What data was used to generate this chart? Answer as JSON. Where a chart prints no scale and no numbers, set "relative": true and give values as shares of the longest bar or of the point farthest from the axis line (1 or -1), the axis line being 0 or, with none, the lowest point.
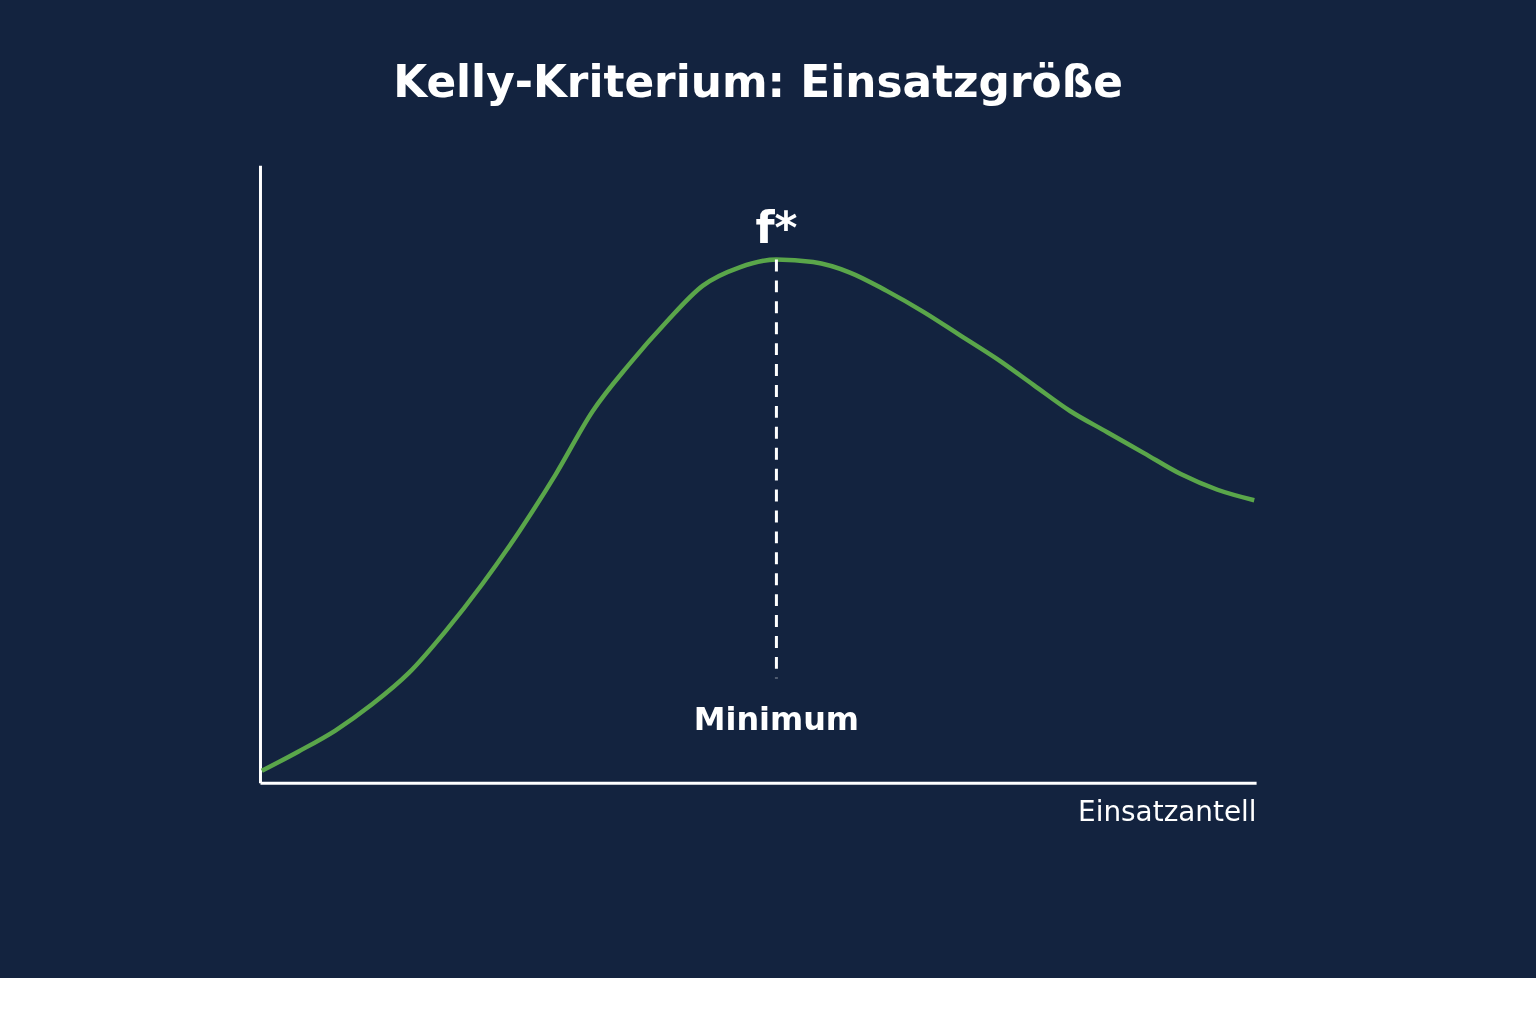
{
  "chart_data": {
    "type": "line",
    "title": "Kelly-Kriterium: Einsatzgröße",
    "xlabel": "Einsatzantell",
    "relative": true,
    "categories": [
      null,
      null,
      null,
      null,
      null,
      null,
      null,
      null,
      null,
      null,
      null,
      null,
      null,
      null,
      null,
      null,
      null,
      null,
      null,
      null,
      null,
      null,
      null,
      null,
      null,
      null,
      null,
      null
    ],
    "series": [
      {
        "color": "#5aa64a",
        "values": [
          0.023,
          0.06,
          0.1,
          0.15,
          0.21,
          0.29,
          0.38,
          0.48,
          0.59,
          0.71,
          0.8,
          0.88,
          0.95,
          0.985,
          1.0,
          0.995,
          0.975,
          0.94,
          0.9,
          0.855,
          0.81,
          0.76,
          0.71,
          0.67,
          0.63,
          0.59,
          0.56,
          0.54
        ]
      }
    ],
    "annotations": [
      "f*",
      "Minimum"
    ],
    "grid": false,
    "marker": "none",
    "line_style": "solid"
  }
}
